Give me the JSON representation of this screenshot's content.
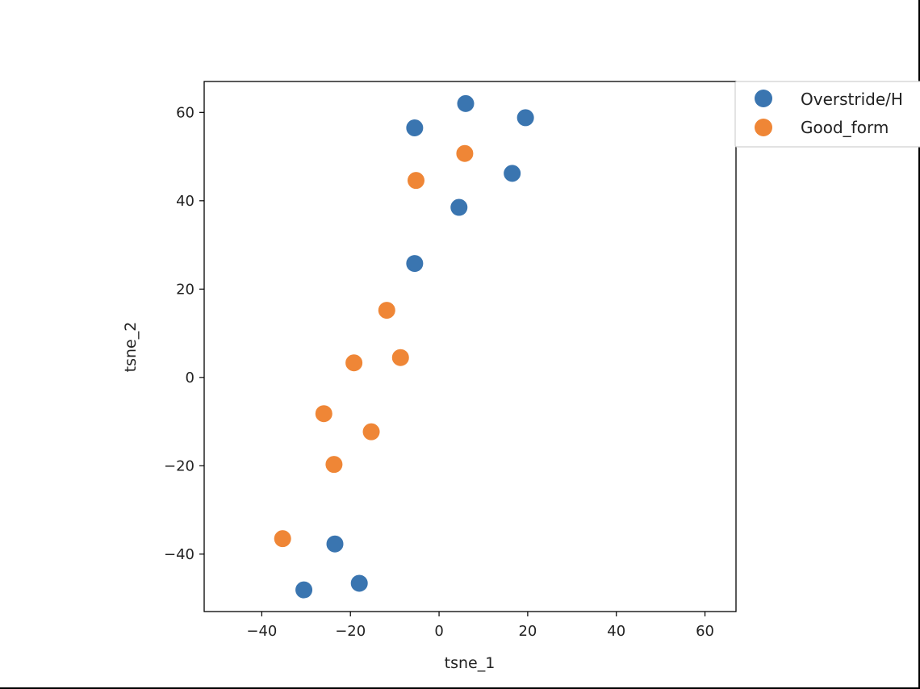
{
  "chart_data": {
    "type": "scatter",
    "title": "",
    "xlabel": "tsne_1",
    "ylabel": "tsne_2",
    "xlim": [
      -53,
      67
    ],
    "ylim": [
      -53,
      67
    ],
    "xticks": [
      -40,
      -20,
      0,
      20,
      40,
      60
    ],
    "yticks": [
      -40,
      -20,
      0,
      20,
      40,
      60
    ],
    "xtick_labels": [
      "−40",
      "−20",
      "0",
      "20",
      "40",
      "60"
    ],
    "ytick_labels": [
      "−40",
      "−20",
      "0",
      "20",
      "40",
      "60"
    ],
    "grid": false,
    "legend_position": "outside-top-right",
    "series": [
      {
        "name": "Overstride/H",
        "color": "#3a75b0",
        "points": [
          {
            "x": 6,
            "y": 62
          },
          {
            "x": 19.5,
            "y": 58.8
          },
          {
            "x": -5.5,
            "y": 56.5
          },
          {
            "x": 16.5,
            "y": 46.2
          },
          {
            "x": 4.5,
            "y": 38.5
          },
          {
            "x": -5.5,
            "y": 25.8
          },
          {
            "x": -23.5,
            "y": -37.7
          },
          {
            "x": -18,
            "y": -46.6
          },
          {
            "x": -30.5,
            "y": -48.1
          }
        ]
      },
      {
        "name": "Good_form",
        "color": "#ef8636",
        "points": [
          {
            "x": 5.8,
            "y": 50.7
          },
          {
            "x": -5.2,
            "y": 44.6
          },
          {
            "x": -11.8,
            "y": 15.2
          },
          {
            "x": -8.7,
            "y": 4.5
          },
          {
            "x": -19.2,
            "y": 3.3
          },
          {
            "x": -26,
            "y": -8.2
          },
          {
            "x": -15.3,
            "y": -12.3
          },
          {
            "x": -23.7,
            "y": -19.7
          },
          {
            "x": -35.3,
            "y": -36.5
          }
        ]
      }
    ]
  }
}
